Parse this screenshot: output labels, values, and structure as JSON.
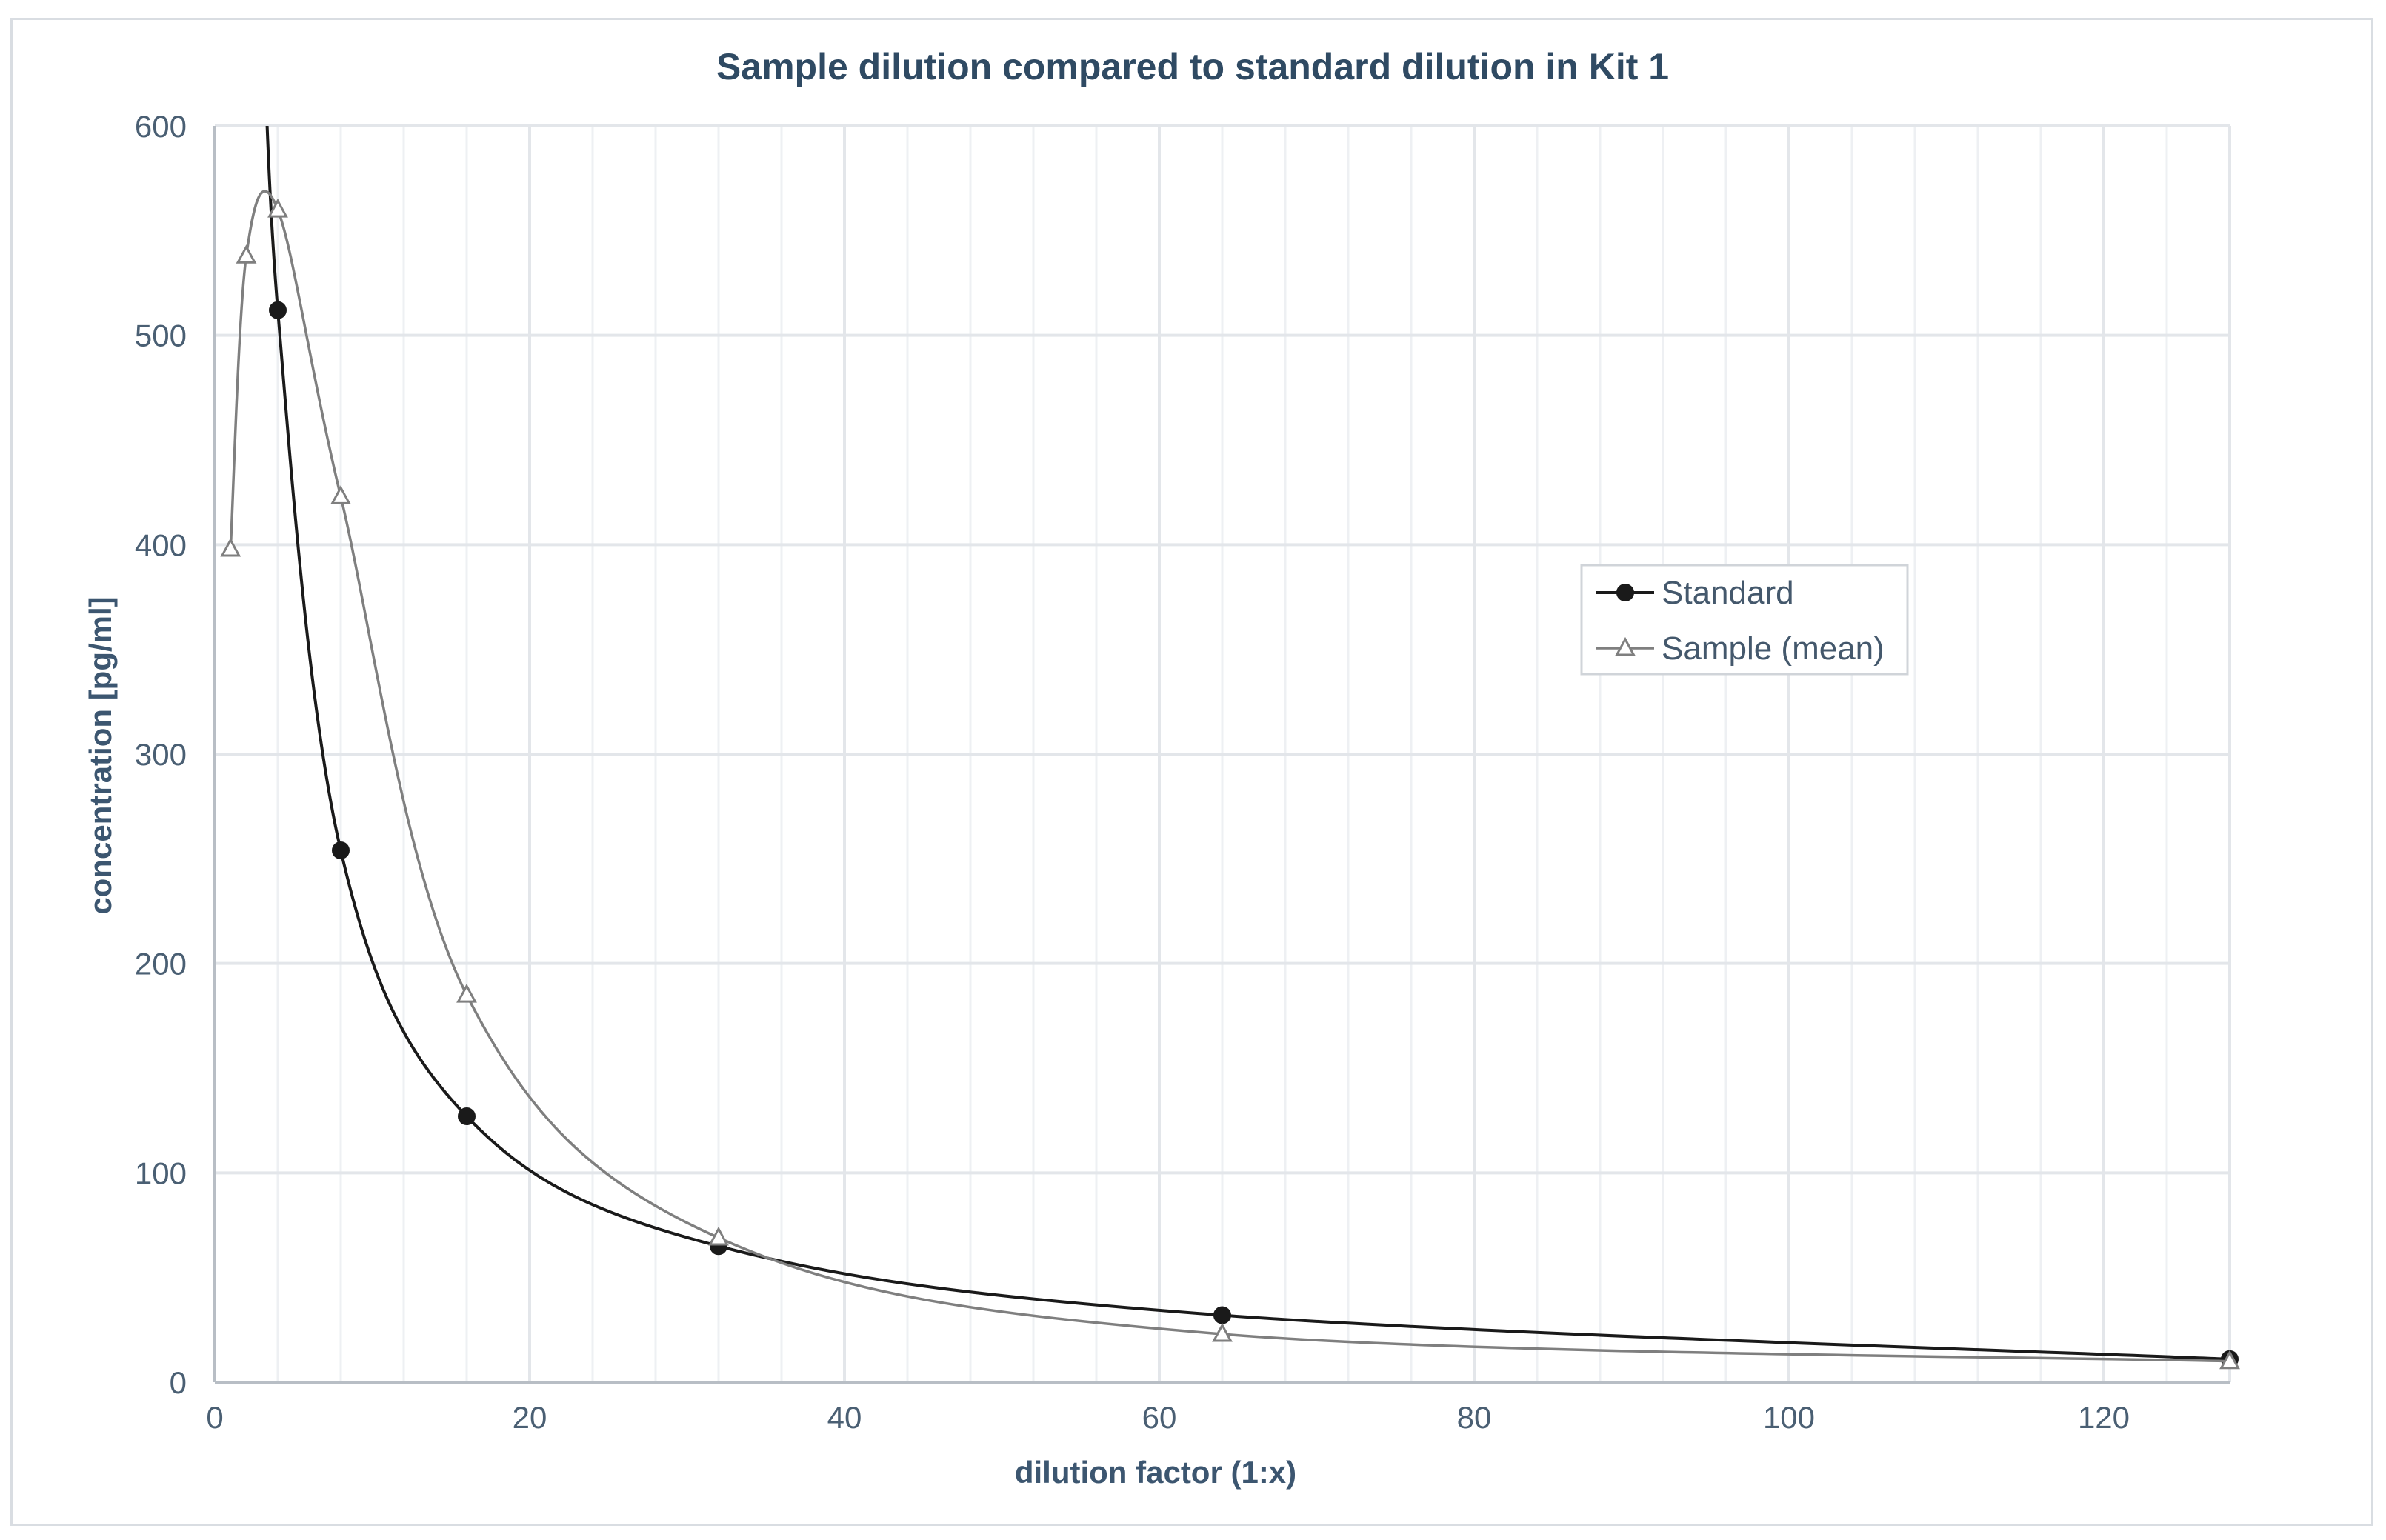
{
  "chart_data": {
    "type": "scatter",
    "title": "Sample dilution compared to standard dilution in Kit 1",
    "xlabel": "dilution factor (1:x)",
    "ylabel": "concentration  [pg/ml]",
    "xlim": [
      0,
      128
    ],
    "ylim": [
      0,
      600
    ],
    "x_ticks": [
      0,
      20,
      40,
      60,
      80,
      100,
      120
    ],
    "y_ticks": [
      0,
      100,
      200,
      300,
      400,
      500,
      600
    ],
    "x_minor_step": 4,
    "legend_position": "right-center",
    "series": [
      {
        "name": "Standard",
        "marker": "circle",
        "color": "#1a1a1a",
        "x": [
          4,
          8,
          16,
          32,
          64,
          128
        ],
        "y": [
          512,
          254,
          127,
          65,
          32,
          11
        ]
      },
      {
        "name": "Sample (mean)",
        "marker": "triangle",
        "color": "#7f7f7f",
        "x": [
          1,
          2,
          4,
          8,
          16,
          32,
          64,
          128
        ],
        "y": [
          398,
          538,
          560,
          423,
          185,
          69,
          23,
          10
        ]
      }
    ]
  }
}
